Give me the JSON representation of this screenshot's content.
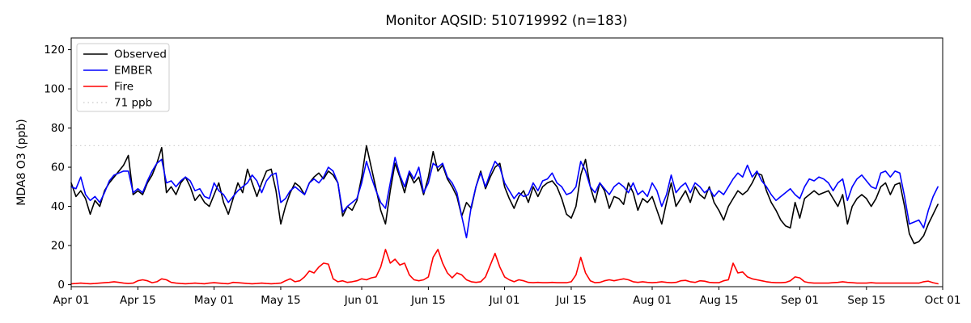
{
  "title": "Monitor AQSID: 510719992 (n=183)",
  "chart_data": {
    "type": "line",
    "title": "Monitor AQSID: 510719992 (n=183)",
    "xlabel": "",
    "ylabel": "MDA8 O3 (ppb)",
    "x_start": "Apr 01",
    "x_end": "Oct 01",
    "n_points": 183,
    "grid": false,
    "ylim": [
      -1,
      126
    ],
    "xlim_days": [
      0,
      183
    ],
    "yticks": [
      0,
      20,
      40,
      60,
      80,
      100,
      120
    ],
    "xtick_labels": [
      "Apr 01",
      "Apr 15",
      "May 01",
      "May 15",
      "Jun 01",
      "Jun 15",
      "Jul 01",
      "Jul 15",
      "Aug 01",
      "Aug 15",
      "Sep 01",
      "Sep 15",
      "Oct 01"
    ],
    "xtick_days": [
      0,
      14,
      30,
      44,
      61,
      75,
      91,
      105,
      122,
      136,
      153,
      167,
      183
    ],
    "threshold": {
      "value": 71,
      "label": "71 ppb",
      "color": "#d3d3d3",
      "style": "dotted"
    },
    "legend": {
      "position": "upper-left",
      "entries": [
        {
          "label": "Observed",
          "color": "#000000",
          "dash": "solid"
        },
        {
          "label": "EMBER",
          "color": "#0000ff",
          "dash": "solid"
        },
        {
          "label": "Fire",
          "color": "#ff0000",
          "dash": "solid"
        },
        {
          "label": "71 ppb",
          "color": "#d3d3d3",
          "dash": "dotted"
        }
      ]
    },
    "series": [
      {
        "name": "Observed",
        "color": "#000000",
        "values": [
          52,
          45,
          48,
          44,
          36,
          43,
          40,
          48,
          52,
          55,
          58,
          61,
          66,
          46,
          48,
          46,
          52,
          56,
          62,
          70,
          47,
          50,
          46,
          52,
          55,
          50,
          43,
          46,
          42,
          40,
          46,
          52,
          42,
          36,
          44,
          52,
          47,
          59,
          52,
          45,
          52,
          58,
          59,
          48,
          31,
          40,
          47,
          52,
          50,
          46,
          52,
          55,
          57,
          54,
          58,
          56,
          52,
          35,
          40,
          38,
          43,
          55,
          71,
          60,
          49,
          38,
          31,
          48,
          62,
          55,
          47,
          57,
          52,
          55,
          46,
          55,
          68,
          58,
          61,
          54,
          50,
          45,
          35,
          42,
          39,
          50,
          58,
          49,
          55,
          60,
          62,
          50,
          44,
          39,
          45,
          48,
          42,
          50,
          45,
          50,
          52,
          53,
          50,
          44,
          36,
          34,
          40,
          56,
          64,
          50,
          42,
          52,
          48,
          39,
          45,
          44,
          41,
          52,
          47,
          38,
          44,
          42,
          45,
          38,
          31,
          42,
          52,
          40,
          44,
          48,
          42,
          50,
          46,
          44,
          50,
          42,
          38,
          33,
          40,
          44,
          48,
          46,
          48,
          52,
          57,
          56,
          48,
          42,
          38,
          33,
          30,
          29,
          42,
          34,
          44,
          46,
          48,
          46,
          47,
          48,
          44,
          40,
          46,
          31,
          40,
          44,
          46,
          44,
          40,
          44,
          50,
          52,
          46,
          51,
          52,
          40,
          26,
          21,
          22,
          25,
          31,
          36,
          41
        ]
      },
      {
        "name": "EMBER",
        "color": "#0000ff",
        "values": [
          50,
          49,
          55,
          46,
          43,
          45,
          42,
          47,
          53,
          56,
          57,
          58,
          58,
          47,
          49,
          47,
          53,
          58,
          62,
          64,
          52,
          53,
          50,
          53,
          55,
          53,
          48,
          49,
          45,
          44,
          52,
          48,
          46,
          42,
          45,
          48,
          50,
          52,
          56,
          53,
          47,
          53,
          56,
          57,
          42,
          44,
          48,
          50,
          48,
          46,
          52,
          54,
          52,
          55,
          60,
          58,
          52,
          37,
          40,
          42,
          44,
          52,
          63,
          55,
          48,
          42,
          39,
          52,
          65,
          56,
          50,
          58,
          54,
          60,
          47,
          52,
          62,
          60,
          62,
          55,
          52,
          47,
          35,
          24,
          40,
          50,
          57,
          50,
          57,
          63,
          60,
          52,
          48,
          44,
          47,
          45,
          46,
          52,
          48,
          53,
          54,
          57,
          52,
          50,
          46,
          47,
          50,
          63,
          58,
          50,
          47,
          52,
          49,
          46,
          50,
          52,
          50,
          47,
          52,
          46,
          48,
          45,
          52,
          48,
          40,
          46,
          56,
          47,
          50,
          52,
          47,
          52,
          50,
          47,
          49,
          45,
          48,
          46,
          50,
          54,
          57,
          55,
          61,
          55,
          58,
          53,
          50,
          46,
          43,
          45,
          47,
          49,
          46,
          44,
          50,
          54,
          53,
          55,
          54,
          52,
          48,
          52,
          54,
          43,
          50,
          54,
          56,
          53,
          50,
          49,
          57,
          58,
          55,
          58,
          57,
          45,
          31,
          32,
          33,
          29,
          38,
          45,
          50
        ]
      },
      {
        "name": "Fire",
        "color": "#ff0000",
        "values": [
          0.5,
          0.6,
          0.8,
          0.6,
          0.5,
          0.6,
          0.8,
          1.0,
          1.2,
          1.5,
          1.2,
          0.8,
          0.6,
          0.8,
          2.0,
          2.5,
          2.0,
          1.0,
          1.5,
          3.0,
          2.5,
          1.2,
          0.8,
          0.6,
          0.5,
          0.6,
          0.8,
          0.6,
          0.5,
          0.8,
          1.0,
          0.8,
          0.6,
          0.5,
          1.2,
          1.0,
          0.8,
          0.6,
          0.5,
          0.6,
          0.8,
          0.6,
          0.5,
          0.6,
          0.8,
          2.0,
          3.0,
          1.5,
          2.0,
          4.0,
          7.0,
          6.0,
          9.0,
          11.0,
          10.5,
          3.0,
          1.5,
          2.0,
          1.2,
          1.5,
          2.0,
          3.0,
          2.5,
          3.5,
          4.0,
          9.0,
          18.0,
          11.0,
          13.0,
          10.0,
          11.0,
          5.0,
          2.5,
          2.0,
          2.5,
          4.0,
          14.0,
          18.0,
          11.0,
          6.0,
          3.5,
          6.0,
          5.0,
          2.5,
          1.5,
          1.2,
          1.5,
          4.0,
          10.0,
          16.0,
          9.0,
          4.0,
          2.5,
          1.5,
          2.5,
          2.0,
          1.2,
          1.0,
          1.2,
          1.0,
          1.0,
          1.2,
          1.0,
          1.0,
          1.0,
          1.5,
          5.0,
          14.0,
          6.0,
          2.0,
          1.0,
          1.2,
          2.0,
          2.5,
          2.0,
          2.5,
          3.0,
          2.5,
          1.5,
          1.2,
          1.5,
          1.2,
          1.0,
          1.2,
          1.5,
          1.2,
          1.0,
          1.2,
          2.0,
          2.2,
          1.5,
          1.2,
          2.0,
          1.8,
          1.2,
          1.0,
          1.0,
          2.0,
          2.5,
          11.0,
          6.0,
          6.5,
          4.0,
          3.0,
          2.5,
          2.0,
          1.5,
          1.2,
          1.0,
          1.0,
          1.2,
          2.0,
          4.0,
          3.5,
          1.5,
          1.0,
          0.8,
          0.8,
          0.8,
          0.8,
          1.0,
          1.2,
          1.5,
          1.2,
          1.0,
          0.8,
          0.8,
          0.8,
          1.0,
          0.8,
          0.8,
          0.8,
          0.8,
          0.8,
          0.8,
          0.8,
          0.8,
          0.8,
          0.8,
          1.5,
          1.8,
          1.0,
          0.5
        ]
      }
    ]
  }
}
